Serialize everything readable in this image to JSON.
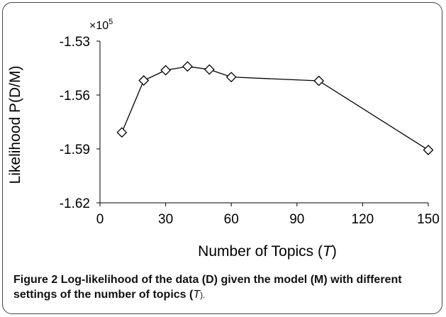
{
  "chart_data": {
    "type": "line",
    "x": [
      10,
      20,
      30,
      40,
      50,
      60,
      100,
      150
    ],
    "y": [
      -1.5808,
      -1.5519,
      -1.5462,
      -1.5441,
      -1.5458,
      -1.55,
      -1.5521,
      -1.5906
    ],
    "xlabel": "Number of Topics (T)",
    "ylabel": "Likelihood P(D/M)",
    "y_multiplier": "×10",
    "y_multiplier_exp": "5",
    "xlim": [
      0,
      150
    ],
    "ylim": [
      -1.62,
      -1.53
    ],
    "xticks": [
      "0",
      "30",
      "60",
      "90",
      "120",
      "150"
    ],
    "yticks": [
      "-1.53",
      "-1.56",
      "-1.59",
      "-1.62"
    ],
    "marker": "diamond",
    "grid": false,
    "colors": {
      "line": "#000000",
      "marker_fill": "#ffffff"
    }
  },
  "axis": {
    "xlabel_main": "Number of Topics (",
    "xlabel_var": "T",
    "xlabel_end": ")"
  },
  "caption": {
    "label": "Figure 2",
    "text": "Log-likelihood of the data (D) given the model (M) with different settings of the number of topics (",
    "var": "T",
    "end": ")."
  }
}
